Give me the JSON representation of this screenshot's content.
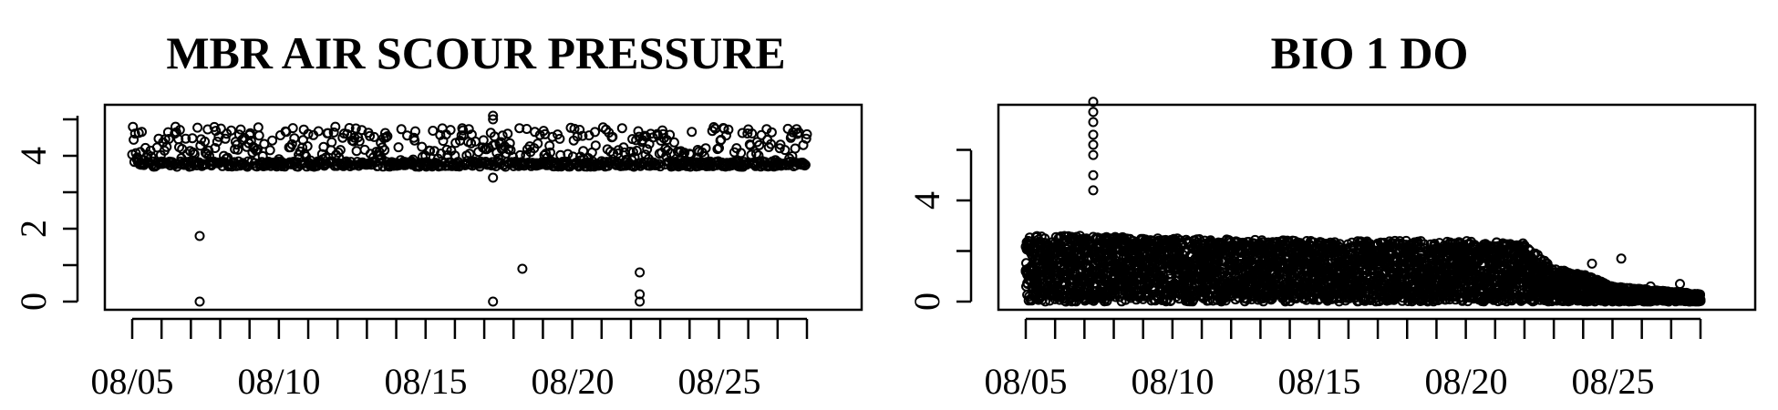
{
  "chart_data": [
    {
      "type": "scatter",
      "title": "MBR AIR SCOUR PRESSURE",
      "xlabel": "",
      "ylabel": "",
      "x_domain": [
        "2023-08-05",
        "2023-08-28"
      ],
      "x_tick_labels": [
        "08/05",
        "08/10",
        "08/15",
        "08/20",
        "08/25"
      ],
      "y_tick_labels": [
        "0",
        "2",
        "4"
      ],
      "ylim": [
        0,
        5.1
      ],
      "grid": false,
      "series": [
        {
          "band_low": 3.7,
          "band_high": 4.8,
          "samples_per_day": 40,
          "points": [
            {
              "x": "2023-08-07",
              "y": 1.8
            },
            {
              "x": "2023-08-07",
              "y": 0.0
            },
            {
              "x": "2023-08-17",
              "y": 5.1
            },
            {
              "x": "2023-08-17",
              "y": 5.0
            },
            {
              "x": "2023-08-17",
              "y": 3.4
            },
            {
              "x": "2023-08-17",
              "y": 0.0
            },
            {
              "x": "2023-08-18",
              "y": 0.9
            },
            {
              "x": "2023-08-22",
              "y": 0.8
            },
            {
              "x": "2023-08-22",
              "y": 0.2
            },
            {
              "x": "2023-08-22",
              "y": 0.0
            }
          ]
        }
      ]
    },
    {
      "type": "scatter",
      "title": "BIO 1 DO",
      "xlabel": "",
      "ylabel": "",
      "x_domain": [
        "2023-08-05",
        "2023-08-28"
      ],
      "x_tick_labels": [
        "08/05",
        "08/10",
        "08/15",
        "08/20",
        "08/25"
      ],
      "y_tick_labels": [
        "0",
        "4"
      ],
      "ylim": [
        0,
        8
      ],
      "grid": false,
      "series": [
        {
          "envelope": [
            {
              "x": "2023-08-05",
              "y": 2.6
            },
            {
              "x": "2023-08-07",
              "y": 2.6
            },
            {
              "x": "2023-08-10",
              "y": 2.5
            },
            {
              "x": "2023-08-15",
              "y": 2.4
            },
            {
              "x": "2023-08-20",
              "y": 2.4
            },
            {
              "x": "2023-08-22",
              "y": 2.3
            },
            {
              "x": "2023-08-23",
              "y": 1.3
            },
            {
              "x": "2023-08-24",
              "y": 1.1
            },
            {
              "x": "2023-08-25",
              "y": 0.6
            },
            {
              "x": "2023-08-26",
              "y": 0.5
            },
            {
              "x": "2023-08-27",
              "y": 0.4
            },
            {
              "x": "2023-08-28",
              "y": 0.3
            }
          ],
          "samples_per_day": 60,
          "points": [
            {
              "x": "2023-08-07",
              "y": 7.9
            },
            {
              "x": "2023-08-07",
              "y": 7.5
            },
            {
              "x": "2023-08-07",
              "y": 7.1
            },
            {
              "x": "2023-08-07",
              "y": 6.6
            },
            {
              "x": "2023-08-07",
              "y": 6.2
            },
            {
              "x": "2023-08-07",
              "y": 5.8
            },
            {
              "x": "2023-08-07",
              "y": 5.0
            },
            {
              "x": "2023-08-07",
              "y": 4.4
            },
            {
              "x": "2023-08-24",
              "y": 1.5
            },
            {
              "x": "2023-08-25",
              "y": 1.7
            },
            {
              "x": "2023-08-26",
              "y": 0.6
            },
            {
              "x": "2023-08-27",
              "y": 0.7
            }
          ]
        }
      ]
    }
  ]
}
